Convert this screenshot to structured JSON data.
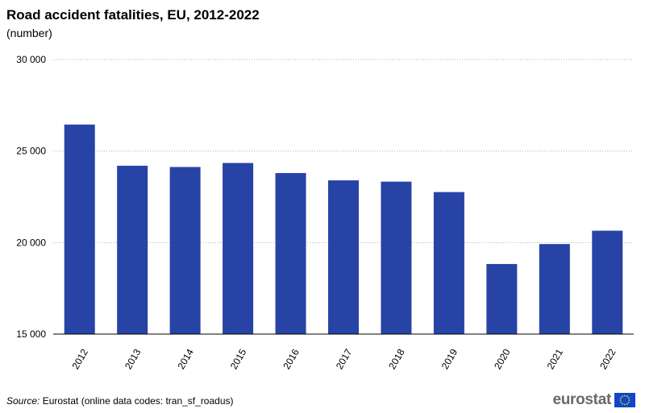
{
  "chart_data": {
    "type": "bar",
    "title": "Road accident fatalities, EU, 2012-2022",
    "subtitle": "(number)",
    "categories": [
      "2012",
      "2013",
      "2014",
      "2015",
      "2016",
      "2017",
      "2018",
      "2019",
      "2020",
      "2021",
      "2022"
    ],
    "values": [
      26450,
      24200,
      24130,
      24350,
      23800,
      23400,
      23330,
      22760,
      18830,
      19920,
      20650
    ],
    "ylim": [
      15000,
      30000
    ],
    "yticks": [
      15000,
      20000,
      25000,
      30000
    ],
    "ytick_labels": [
      "15 000",
      "20 000",
      "25 000",
      "30 000"
    ],
    "xlabel": "",
    "ylabel": "",
    "grid": true,
    "bar_color": "#2843a6"
  },
  "footer": {
    "source_label": "Source:",
    "source_text": " Eurostat (online data codes: tran_sf_roadus)",
    "logo_text": "eurostat"
  },
  "colors": {
    "flag_blue": "#0e47cb",
    "flag_star": "#ffde00"
  }
}
